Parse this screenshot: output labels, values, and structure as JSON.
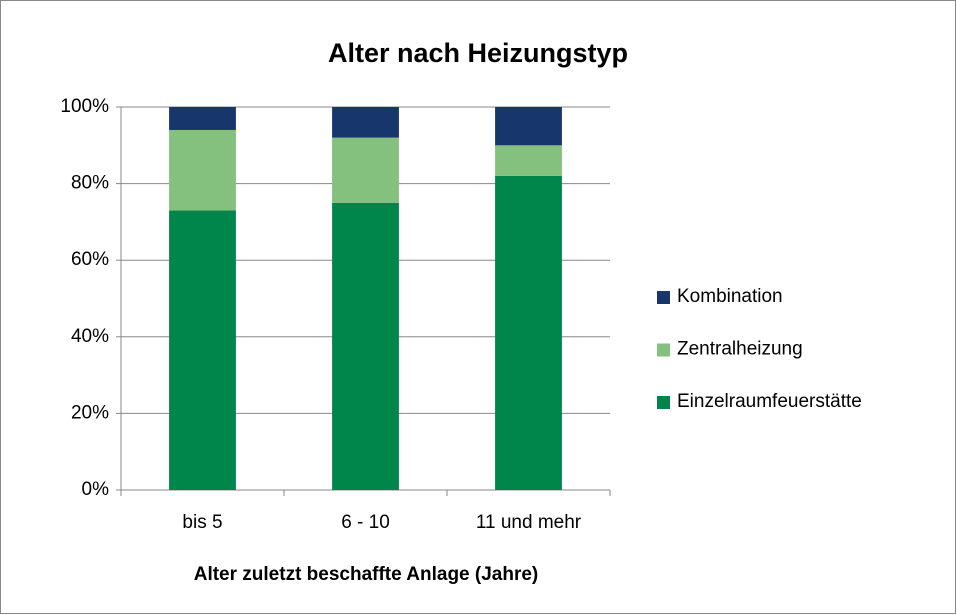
{
  "chart_data": {
    "type": "stacked_bar_100",
    "title": "Alter nach Heizungstyp",
    "x_label": "Alter zuletzt beschaffte Anlage (Jahre)",
    "categories": [
      "bis 5",
      "6 - 10",
      "11 und mehr"
    ],
    "series": [
      {
        "name": "Einzelraumfeuerstätte",
        "color": "#00854a",
        "values": [
          73,
          75,
          82
        ]
      },
      {
        "name": "Zentralheizung",
        "color": "#85c17e",
        "values": [
          21,
          17,
          8
        ]
      },
      {
        "name": "Kombination",
        "color": "#17366b",
        "values": [
          6,
          8,
          10
        ]
      }
    ],
    "ylim": [
      0,
      100
    ],
    "yticks": [
      {
        "value": 0,
        "label": "0%"
      },
      {
        "value": 20,
        "label": "20%"
      },
      {
        "value": 40,
        "label": "40%"
      },
      {
        "value": 60,
        "label": "60%"
      },
      {
        "value": 80,
        "label": "80%"
      },
      {
        "value": 100,
        "label": "100%"
      }
    ],
    "grid": true,
    "legend": "right"
  }
}
